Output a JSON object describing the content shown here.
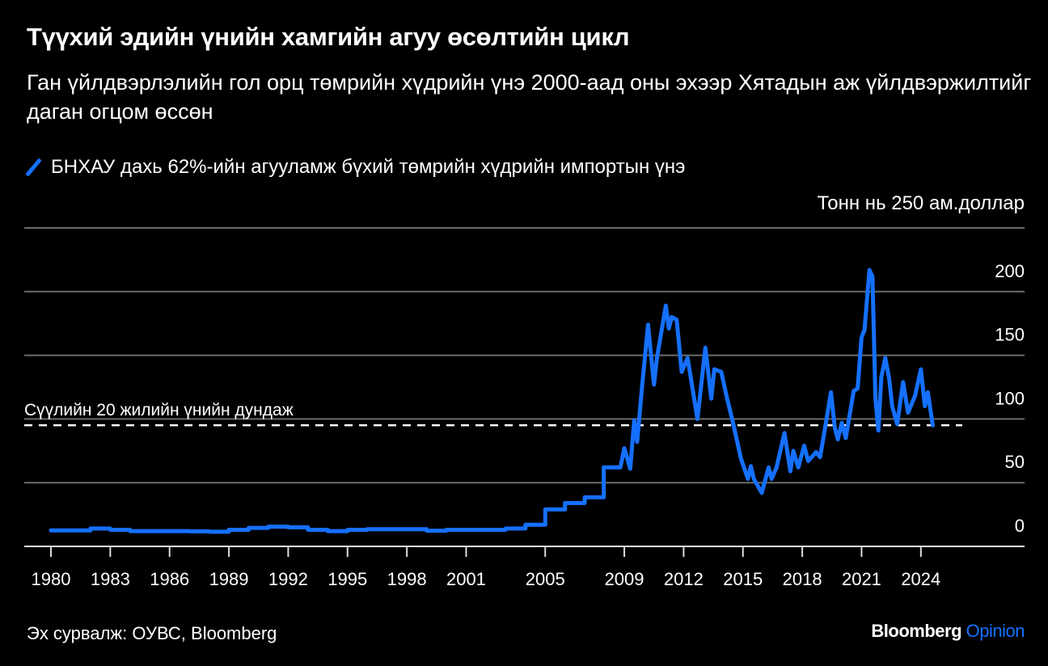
{
  "title": "Түүхий эдийн үнийн хамгийн агуу өсөлтийн цикл",
  "subtitle": "Ган үйлдвэрлэлийн гол орц төмрийн хүдрийн үнэ 2000-аад оны эхээр Хятадын аж үйлдвэржилтийг даган огцом өссөн",
  "source": "Эх сурвалж: ОУВС, Bloomberg",
  "logo": {
    "brand": "Bloomberg",
    "section": "Opinion"
  },
  "colors": {
    "series": "#1570ff",
    "background": "#000000",
    "grid": "#6b6b6b"
  },
  "chart_data": {
    "type": "line",
    "title": "Түүхий эдийн үнийн хамгийн агуу өсөлтийн цикл",
    "legend": [
      "БНХАУ дахь 62%-ийн агууламж бүхий төмрийн хүдрийн импортын үнэ"
    ],
    "legend_placement": "top-left",
    "ylabel": "Тонн нь 250 ам.доллар",
    "ylim": [
      0,
      250
    ],
    "yticks": [
      0,
      50,
      100,
      150,
      200,
      250
    ],
    "ytick_labels": [
      "0",
      "50",
      "100",
      "150",
      "200"
    ],
    "xlim": [
      1979.3,
      1980.0
    ],
    "xticks": [
      1980,
      1983,
      1986,
      1989,
      1992,
      1995,
      1998,
      2001,
      2005,
      2009,
      2012,
      2015,
      2018,
      2021,
      2024
    ],
    "xtick_labels": [
      "1980",
      "1983",
      "1986",
      "1989",
      "1992",
      "1995",
      "1998",
      "2001",
      "2005",
      "2009",
      "2012",
      "2015",
      "2018",
      "2021",
      "2024"
    ],
    "grid": true,
    "annotation": {
      "label": "Сүүлийн 20 жилийн үнийн дундаж",
      "value": 90
    },
    "series": [
      {
        "name": "БНХАУ дахь 62%-ийн агууламж бүхий төмрийн хүдрийн импортын үнэ",
        "points": [
          [
            1980,
            12.5
          ],
          [
            1982,
            12.5
          ],
          [
            1982,
            14
          ],
          [
            1983,
            14
          ],
          [
            1983,
            13
          ],
          [
            1984,
            13
          ],
          [
            1984,
            12
          ],
          [
            1987,
            12
          ],
          [
            1987,
            11.8
          ],
          [
            1988,
            11.8
          ],
          [
            1988,
            11.5
          ],
          [
            1989,
            11.5
          ],
          [
            1989,
            13
          ],
          [
            1990,
            13
          ],
          [
            1990,
            14.5
          ],
          [
            1991,
            14.5
          ],
          [
            1991,
            15.5
          ],
          [
            1992,
            15.5
          ],
          [
            1992,
            15
          ],
          [
            1993,
            15
          ],
          [
            1993,
            13
          ],
          [
            1994,
            13
          ],
          [
            1994,
            12
          ],
          [
            1995,
            12
          ],
          [
            1995,
            13
          ],
          [
            1996,
            13
          ],
          [
            1996,
            13.5
          ],
          [
            1999,
            13.5
          ],
          [
            1999,
            12.3
          ],
          [
            2000,
            12.3
          ],
          [
            2000,
            13
          ],
          [
            2003,
            13
          ],
          [
            2003,
            14
          ],
          [
            2004,
            14
          ],
          [
            2004,
            17
          ],
          [
            2005,
            17
          ],
          [
            2005,
            29
          ],
          [
            2006,
            29
          ],
          [
            2006,
            34
          ],
          [
            2007,
            34
          ],
          [
            2007,
            38.5
          ],
          [
            2007.96,
            38.5
          ],
          [
            2007.96,
            62
          ],
          [
            2008.8,
            62
          ],
          [
            2009.0,
            77
          ],
          [
            2009.3,
            61
          ],
          [
            2009.5,
            99
          ],
          [
            2009.65,
            82
          ],
          [
            2009.9,
            126
          ],
          [
            2010.2,
            174
          ],
          [
            2010.5,
            127
          ],
          [
            2010.65,
            148
          ],
          [
            2011.1,
            189
          ],
          [
            2011.25,
            171
          ],
          [
            2011.4,
            180
          ],
          [
            2011.65,
            178
          ],
          [
            2011.9,
            137
          ],
          [
            2012.2,
            148
          ],
          [
            2012.7,
            100
          ],
          [
            2013.1,
            156
          ],
          [
            2013.4,
            116
          ],
          [
            2013.55,
            139
          ],
          [
            2013.9,
            137
          ],
          [
            2014.2,
            116
          ],
          [
            2014.5,
            97
          ],
          [
            2014.9,
            69
          ],
          [
            2015.25,
            53
          ],
          [
            2015.4,
            63
          ],
          [
            2015.55,
            53
          ],
          [
            2015.95,
            42
          ],
          [
            2016.3,
            62
          ],
          [
            2016.45,
            53
          ],
          [
            2016.7,
            62
          ],
          [
            2017.1,
            89
          ],
          [
            2017.4,
            59
          ],
          [
            2017.55,
            75
          ],
          [
            2017.8,
            62
          ],
          [
            2018.1,
            79
          ],
          [
            2018.3,
            67
          ],
          [
            2018.7,
            74
          ],
          [
            2018.9,
            70
          ],
          [
            2019.1,
            88
          ],
          [
            2019.45,
            121
          ],
          [
            2019.65,
            93
          ],
          [
            2019.8,
            84
          ],
          [
            2020.0,
            97
          ],
          [
            2020.2,
            85
          ],
          [
            2020.6,
            122
          ],
          [
            2020.8,
            124
          ],
          [
            2021.0,
            164
          ],
          [
            2021.15,
            170
          ],
          [
            2021.4,
            217
          ],
          [
            2021.55,
            212
          ],
          [
            2021.7,
            116
          ],
          [
            2021.85,
            91
          ],
          [
            2022.0,
            133
          ],
          [
            2022.2,
            148
          ],
          [
            2022.4,
            131
          ],
          [
            2022.55,
            110
          ],
          [
            2022.8,
            96
          ],
          [
            2023.1,
            129
          ],
          [
            2023.35,
            105
          ],
          [
            2023.7,
            118
          ],
          [
            2024.0,
            139
          ],
          [
            2024.2,
            110
          ],
          [
            2024.35,
            121
          ],
          [
            2024.6,
            95
          ]
        ]
      }
    ]
  }
}
